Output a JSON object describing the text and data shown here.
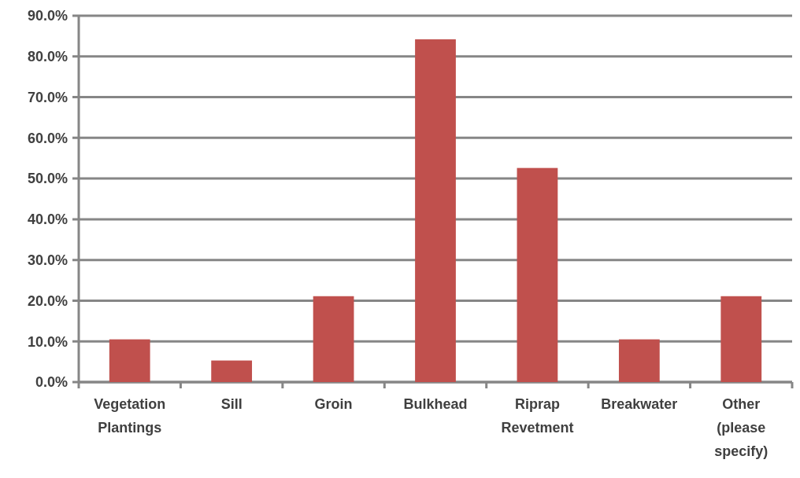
{
  "chart_data": {
    "type": "bar",
    "categories": [
      "Vegetation Plantings",
      "Sill",
      "Groin",
      "Bulkhead",
      "Riprap Revetment",
      "Breakwater",
      "Other (please specify)"
    ],
    "values": [
      10.5,
      5.3,
      21.1,
      84.2,
      52.6,
      10.5,
      21.1
    ],
    "color": "#c0504d",
    "ylim": [
      0,
      90
    ],
    "yticks": [
      {
        "value": 0,
        "label": "0.0%"
      },
      {
        "value": 10,
        "label": "10.0%"
      },
      {
        "value": 20,
        "label": "20.0%"
      },
      {
        "value": 30,
        "label": "30.0%"
      },
      {
        "value": 40,
        "label": "40.0%"
      },
      {
        "value": 50,
        "label": "50.0%"
      },
      {
        "value": 60,
        "label": "60.0%"
      },
      {
        "value": 70,
        "label": "70.0%"
      },
      {
        "value": 80,
        "label": "80.0%"
      },
      {
        "value": 90,
        "label": "90.0%"
      }
    ],
    "grid": "y"
  }
}
